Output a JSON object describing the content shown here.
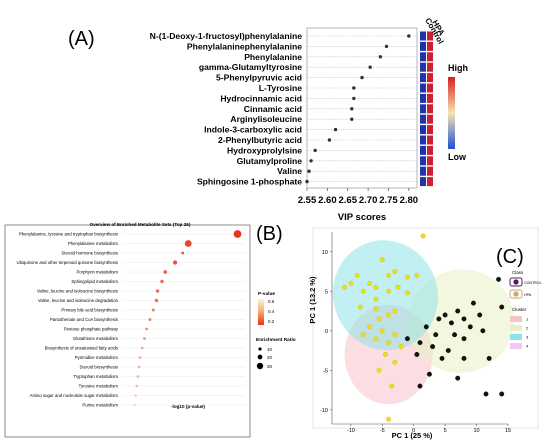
{
  "panel_labels": {
    "a": "(A)",
    "b": "(B)",
    "c": "(C)"
  },
  "chart_data": [
    {
      "type": "scatter",
      "panel": "(A)",
      "xlabel": "VIP scores",
      "xlim": [
        2.55,
        2.82
      ],
      "xticks": [
        2.55,
        2.6,
        2.65,
        2.7,
        2.75,
        2.8
      ],
      "xtick_labels": [
        "2.55",
        "2.60",
        "2.65",
        "2.70",
        "2.75",
        "2.80"
      ],
      "categories": [
        "N-(1-Deoxy-1-fructosyl)phenylalanine",
        "Phenylalaninephenylalanine",
        "Phenylalanine",
        "gamma-Glutamyltyrosine",
        "5-Phenylpyruvic acid",
        "L-Tyrosine",
        "Hydrocinnamic acid",
        "Cinnamic acid",
        "Arginylisoleucine",
        "Indole-3-carboxylic acid",
        "2-Phenylbutyric acid",
        "Hydroxyprolylsine",
        "Glutamylproline",
        "Valine",
        "Sphingosine 1-phosphate"
      ],
      "values": [
        2.8,
        2.745,
        2.73,
        2.705,
        2.685,
        2.665,
        2.665,
        2.66,
        2.66,
        2.62,
        2.605,
        2.57,
        2.56,
        2.555,
        2.55
      ],
      "heat_columns": [
        "Control",
        "HPA"
      ],
      "heat_levels": [
        [
          0,
          1
        ],
        [
          0,
          1
        ],
        [
          0,
          1
        ],
        [
          0,
          1
        ],
        [
          0,
          1
        ],
        [
          0,
          1
        ],
        [
          0,
          1
        ],
        [
          0,
          1
        ],
        [
          0,
          1
        ],
        [
          0,
          1
        ],
        [
          0,
          1
        ],
        [
          0,
          1
        ],
        [
          0,
          1
        ],
        [
          0,
          1
        ],
        [
          0,
          1
        ]
      ],
      "colorbar": {
        "high_label": "High",
        "low_label": "Low",
        "colors": [
          "#d61f1f",
          "#f5e7b0",
          "#1f4fd6"
        ]
      },
      "heat_colors": {
        "high": "#cc1f2f",
        "low": "#2233aa"
      }
    },
    {
      "type": "scatter",
      "panel": "(B)",
      "title": "Overview of Enriched Metabolite Sets (Top 25)",
      "xlabel": "-log10 (p-value)",
      "categories": [
        "Phenylalanine, tyrosine and tryptophan biosynthesis",
        "Phenylalanine metabolism",
        "Steroid hormone biosynthesis",
        "Ubiquinone and other terpenoid quinone biosynthesis",
        "Porphyrin metabolism",
        "Sphingolipid metabolism",
        "Valine, leucine and isoleucine biosynthesis",
        "Valine, leucine and isoleucine degradation",
        "Primary bile acid biosynthesis",
        "Pantothenate and CoA biosynthesis",
        "Pentose phosphate pathway",
        "Glutathione metabolism",
        "Biosynthesis of unsaturated fatty acids",
        "Pyrimidine metabolism",
        "Steroid biosynthesis",
        "Tryptophan metabolism",
        "Tyrosine metabolism",
        "Amino sugar and nucleotide sugar metabolism",
        "Purine metabolism"
      ],
      "x": [
        11.5,
        7.0,
        6.5,
        5.8,
        4.9,
        4.6,
        4.2,
        4.1,
        3.8,
        3.5,
        3.2,
        3.0,
        2.8,
        2.6,
        2.5,
        2.4,
        2.3,
        2.2,
        2.1
      ],
      "enrichment_ratio": [
        30,
        25,
        5,
        12,
        10,
        8,
        9,
        9,
        6,
        6,
        5,
        5,
        4,
        4,
        4,
        4,
        4,
        3,
        3
      ],
      "p_value": [
        0.01,
        0.05,
        0.08,
        0.1,
        0.15,
        0.18,
        0.2,
        0.2,
        0.22,
        0.25,
        0.28,
        0.3,
        0.33,
        0.36,
        0.38,
        0.4,
        0.42,
        0.45,
        0.5
      ],
      "legend": {
        "p_title": "P-value",
        "p_ticks": [
          "0.6",
          "0.4",
          "0.2"
        ],
        "size_title": "Enrichment Ratio",
        "size_ticks": [
          "10",
          "20",
          "30"
        ],
        "colors": [
          "#fdf3dc",
          "#f7a66b",
          "#e8331a"
        ]
      }
    },
    {
      "type": "scatter",
      "panel": "(C)",
      "xlabel": "PC 1 (25 %)",
      "ylabel": "PC 1 (13.2 %)",
      "xlim": [
        -13,
        15
      ],
      "ylim": [
        -11.8,
        12.5
      ],
      "xticks": [
        -10,
        -5,
        0,
        5,
        10,
        15
      ],
      "yticks": [
        10,
        5,
        0,
        -5,
        -10
      ],
      "series": [
        {
          "name": "CONTROL",
          "color": "#f0dc1e",
          "points": [
            [
              1.5,
              12
            ],
            [
              -5,
              9
            ],
            [
              -9,
              7
            ],
            [
              -10,
              6
            ],
            [
              -7,
              6
            ],
            [
              -4,
              7
            ],
            [
              -3,
              7.5
            ],
            [
              -1,
              6.8
            ],
            [
              0.5,
              7
            ],
            [
              -11,
              5.5
            ],
            [
              -8,
              5
            ],
            [
              -6,
              5.5
            ],
            [
              -4,
              5
            ],
            [
              -2.5,
              5.5
            ],
            [
              -1,
              4.8
            ],
            [
              -6,
              4
            ],
            [
              -8.5,
              3
            ],
            [
              -6,
              2.8
            ],
            [
              -3,
              2.5
            ],
            [
              -4,
              2
            ],
            [
              -5.5,
              1.5
            ],
            [
              -7,
              0.5
            ],
            [
              -5,
              0
            ],
            [
              -3,
              -0.5
            ],
            [
              -6,
              -1
            ],
            [
              -4,
              -1.5
            ],
            [
              -2,
              -2
            ],
            [
              -4.5,
              -3
            ],
            [
              -3,
              -4
            ],
            [
              -5.5,
              -5
            ],
            [
              -4,
              -11.2
            ],
            [
              -8,
              -0.5
            ],
            [
              -3.5,
              -7
            ]
          ]
        },
        {
          "name": "HPA",
          "color": "#111111",
          "points": [
            [
              13.5,
              6.5
            ],
            [
              14,
              3
            ],
            [
              9.5,
              3.5
            ],
            [
              10.5,
              2
            ],
            [
              7,
              2.5
            ],
            [
              8,
              1.5
            ],
            [
              5,
              2
            ],
            [
              4,
              1.5
            ],
            [
              6,
              1
            ],
            [
              9,
              0.5
            ],
            [
              11,
              0
            ],
            [
              2,
              0.5
            ],
            [
              3.5,
              -0.5
            ],
            [
              6.5,
              -0.5
            ],
            [
              8,
              -1
            ],
            [
              1,
              -1.5
            ],
            [
              3,
              -2
            ],
            [
              5.5,
              -2.5
            ],
            [
              0.5,
              -3
            ],
            [
              4.5,
              -3.5
            ],
            [
              8,
              -3.5
            ],
            [
              12,
              -3.5
            ],
            [
              2.5,
              -5.5
            ],
            [
              7,
              -6
            ],
            [
              1,
              -7
            ],
            [
              11.5,
              -8
            ],
            [
              14,
              -8
            ],
            [
              -1,
              -1
            ]
          ]
        }
      ],
      "clusters": [
        {
          "name": "1",
          "color": "#f6c3c8"
        },
        {
          "name": "2",
          "color": "#e9f0c5"
        },
        {
          "name": "3",
          "color": "#8fe3e8"
        },
        {
          "name": "4",
          "color": "#f3c7ee"
        }
      ],
      "legend": {
        "class_title": "Class",
        "cluster_title": "Cluster",
        "class_colors": [
          "#5a1a5e",
          "#c9a96b"
        ]
      }
    }
  ]
}
